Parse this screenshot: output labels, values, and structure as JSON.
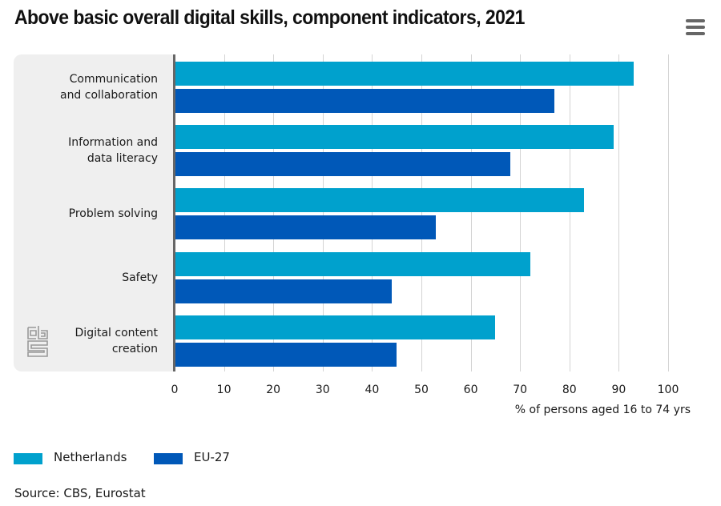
{
  "header": {
    "title": "Above basic overall digital skills, component indicators, 2021",
    "menu_icon": "hamburger-menu-icon"
  },
  "chart_data": {
    "type": "bar",
    "orientation": "horizontal",
    "title": "Above basic overall digital skills, component indicators, 2021",
    "categories": [
      "Communication\nand collaboration",
      "Information and\ndata literacy",
      "Problem solving",
      "Safety",
      "Digital content\ncreation"
    ],
    "series": [
      {
        "name": "Netherlands",
        "color": "#00a1cd",
        "values": [
          93,
          89,
          83,
          72,
          65
        ]
      },
      {
        "name": "EU-27",
        "color": "#0058b8",
        "values": [
          77,
          68,
          53,
          44,
          45
        ]
      }
    ],
    "xlabel": "% of persons aged 16 to 74 yrs",
    "ylabel": "",
    "xlim": [
      0,
      100
    ],
    "xticks": [
      "0",
      "10",
      "20",
      "30",
      "40",
      "50",
      "60",
      "70",
      "80",
      "90",
      "100"
    ],
    "grid": true,
    "legend": "bottom-left"
  },
  "legend": {
    "items": [
      {
        "label": "Netherlands",
        "color": "#00a1cd"
      },
      {
        "label": "EU-27",
        "color": "#0058b8"
      }
    ]
  },
  "footer": {
    "source": "Source: CBS, Eurostat",
    "logo": "cbs-logo-icon"
  }
}
